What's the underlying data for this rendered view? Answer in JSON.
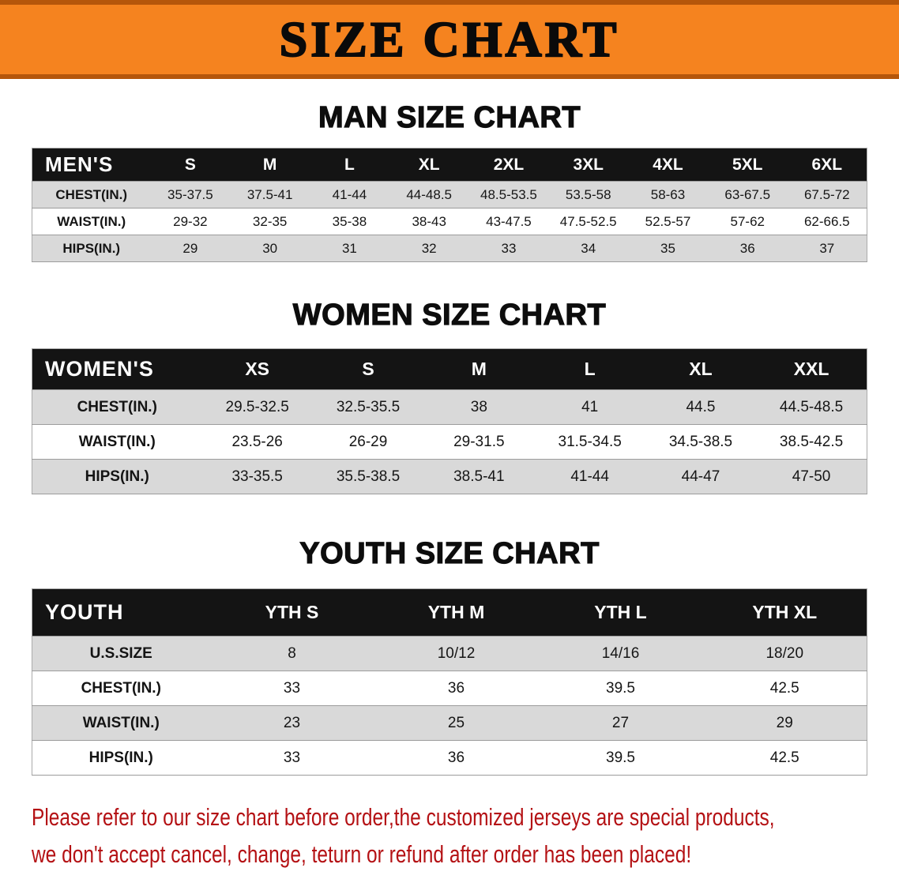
{
  "banner": {
    "title": "SIZE CHART"
  },
  "colors": {
    "banner_orange": "#f5831f",
    "banner_edge": "#b5560a",
    "table_header_black": "#141414",
    "row_stripe_gray": "#d9d9d9",
    "disclaimer_red": "#b41114"
  },
  "man": {
    "heading": "MAN SIZE CHART",
    "corner": "MEN'S",
    "sizes": [
      "S",
      "M",
      "L",
      "XL",
      "2XL",
      "3XL",
      "4XL",
      "5XL",
      "6XL"
    ],
    "rows": [
      {
        "label": "CHEST(IN.)",
        "values": [
          "35-37.5",
          "37.5-41",
          "41-44",
          "44-48.5",
          "48.5-53.5",
          "53.5-58",
          "58-63",
          "63-67.5",
          "67.5-72"
        ]
      },
      {
        "label": "WAIST(IN.)",
        "values": [
          "29-32",
          "32-35",
          "35-38",
          "38-43",
          "43-47.5",
          "47.5-52.5",
          "52.5-57",
          "57-62",
          "62-66.5"
        ]
      },
      {
        "label": "HIPS(IN.)",
        "values": [
          "29",
          "30",
          "31",
          "32",
          "33",
          "34",
          "35",
          "36",
          "37"
        ]
      }
    ]
  },
  "women": {
    "heading": "WOMEN SIZE CHART",
    "corner": "WOMEN'S",
    "sizes": [
      "XS",
      "S",
      "M",
      "L",
      "XL",
      "XXL"
    ],
    "rows": [
      {
        "label": "CHEST(IN.)",
        "values": [
          "29.5-32.5",
          "32.5-35.5",
          "38",
          "41",
          "44.5",
          "44.5-48.5"
        ]
      },
      {
        "label": "WAIST(IN.)",
        "values": [
          "23.5-26",
          "26-29",
          "29-31.5",
          "31.5-34.5",
          "34.5-38.5",
          "38.5-42.5"
        ]
      },
      {
        "label": "HIPS(IN.)",
        "values": [
          "33-35.5",
          "35.5-38.5",
          "38.5-41",
          "41-44",
          "44-47",
          "47-50"
        ]
      }
    ]
  },
  "youth": {
    "heading": "YOUTH SIZE CHART",
    "corner": "YOUTH",
    "sizes": [
      "YTH S",
      "YTH M",
      "YTH L",
      "YTH XL"
    ],
    "rows": [
      {
        "label": "U.S.SIZE",
        "values": [
          "8",
          "10/12",
          "14/16",
          "18/20"
        ]
      },
      {
        "label": "CHEST(IN.)",
        "values": [
          "33",
          "36",
          "39.5",
          "42.5"
        ]
      },
      {
        "label": "WAIST(IN.)",
        "values": [
          "23",
          "25",
          "27",
          "29"
        ]
      },
      {
        "label": "HIPS(IN.)",
        "values": [
          "33",
          "36",
          "39.5",
          "42.5"
        ]
      }
    ]
  },
  "disclaimer": {
    "line1": "Please refer to our size chart before order,the customized jerseys are special products,",
    "line2": "we don't accept cancel, change, teturn or refund after order has been placed!"
  }
}
